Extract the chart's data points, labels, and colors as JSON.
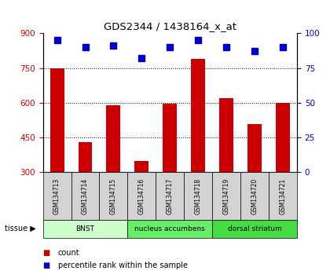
{
  "title": "GDS2344 / 1438164_x_at",
  "samples": [
    "GSM134713",
    "GSM134714",
    "GSM134715",
    "GSM134716",
    "GSM134717",
    "GSM134718",
    "GSM134719",
    "GSM134720",
    "GSM134721"
  ],
  "counts": [
    750,
    430,
    590,
    350,
    595,
    790,
    620,
    510,
    600
  ],
  "percentiles": [
    95,
    90,
    91,
    82,
    90,
    95,
    90,
    87,
    90
  ],
  "ylim_left": [
    300,
    900
  ],
  "ylim_right": [
    0,
    100
  ],
  "yticks_left": [
    300,
    450,
    600,
    750,
    900
  ],
  "yticks_right": [
    0,
    25,
    50,
    75,
    100
  ],
  "bar_color": "#cc0000",
  "dot_color": "#0000cc",
  "grid_color": "#000000",
  "tissue_groups": [
    {
      "label": "BNST",
      "start": 0,
      "end": 3,
      "color": "#ccffcc"
    },
    {
      "label": "nucleus accumbens",
      "start": 3,
      "end": 6,
      "color": "#66ee66"
    },
    {
      "label": "dorsal striatum",
      "start": 6,
      "end": 9,
      "color": "#44dd44"
    }
  ],
  "sample_label_bg": "#d3d3d3",
  "tissue_label": "tissue",
  "legend_count_label": "count",
  "legend_percentile_label": "percentile rank within the sample",
  "bar_width": 0.5,
  "dot_size": 40
}
